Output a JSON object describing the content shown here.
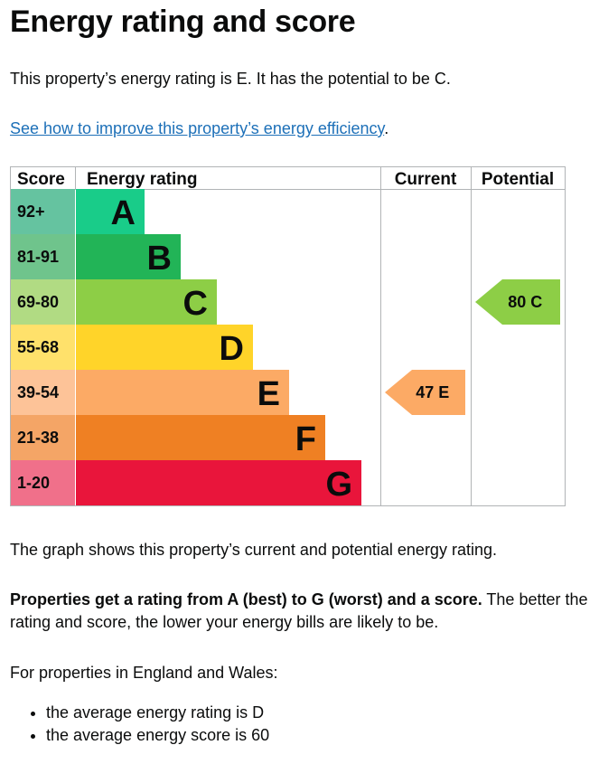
{
  "heading": "Energy rating and score",
  "intro": "This property’s energy rating is E. It has the potential to be C.",
  "improve_link": "See how to improve this property’s energy efficiency",
  "improve_link_suffix": ".",
  "graph_caption": "The graph shows this property’s current and potential energy rating.",
  "ratings_bold": "Properties get a rating from A (best) to G (worst) and a score.",
  "ratings_text": " The better the rating and score, the lower your energy bills are likely to be.",
  "england_wales": "For properties in England and Wales:",
  "averages": [
    "the average energy rating is D",
    "the average energy score is 60"
  ],
  "chart_data": {
    "type": "bar",
    "columns": [
      "Score",
      "Energy rating",
      "Current",
      "Potential"
    ],
    "bands": [
      {
        "score": "92+",
        "letter": "A",
        "color": "#19cc89",
        "score_color": "#65c3a0"
      },
      {
        "score": "81-91",
        "letter": "B",
        "color": "#22b457",
        "score_color": "#6fc48c"
      },
      {
        "score": "69-80",
        "letter": "C",
        "color": "#8dce46",
        "score_color": "#b1db83"
      },
      {
        "score": "55-68",
        "letter": "D",
        "color": "#ffd429",
        "score_color": "#ffe16b"
      },
      {
        "score": "39-54",
        "letter": "E",
        "color": "#fcaa65",
        "score_color": "#fdc398"
      },
      {
        "score": "21-38",
        "letter": "F",
        "color": "#ef8023",
        "score_color": "#f4a566"
      },
      {
        "score": "1-20",
        "letter": "G",
        "color": "#e9153b",
        "score_color": "#f0708a"
      }
    ],
    "current": {
      "score": 47,
      "letter": "E",
      "label": "47  E",
      "color": "#fcaa65"
    },
    "potential": {
      "score": 80,
      "letter": "C",
      "label": "80  C",
      "color": "#8dce46"
    }
  }
}
